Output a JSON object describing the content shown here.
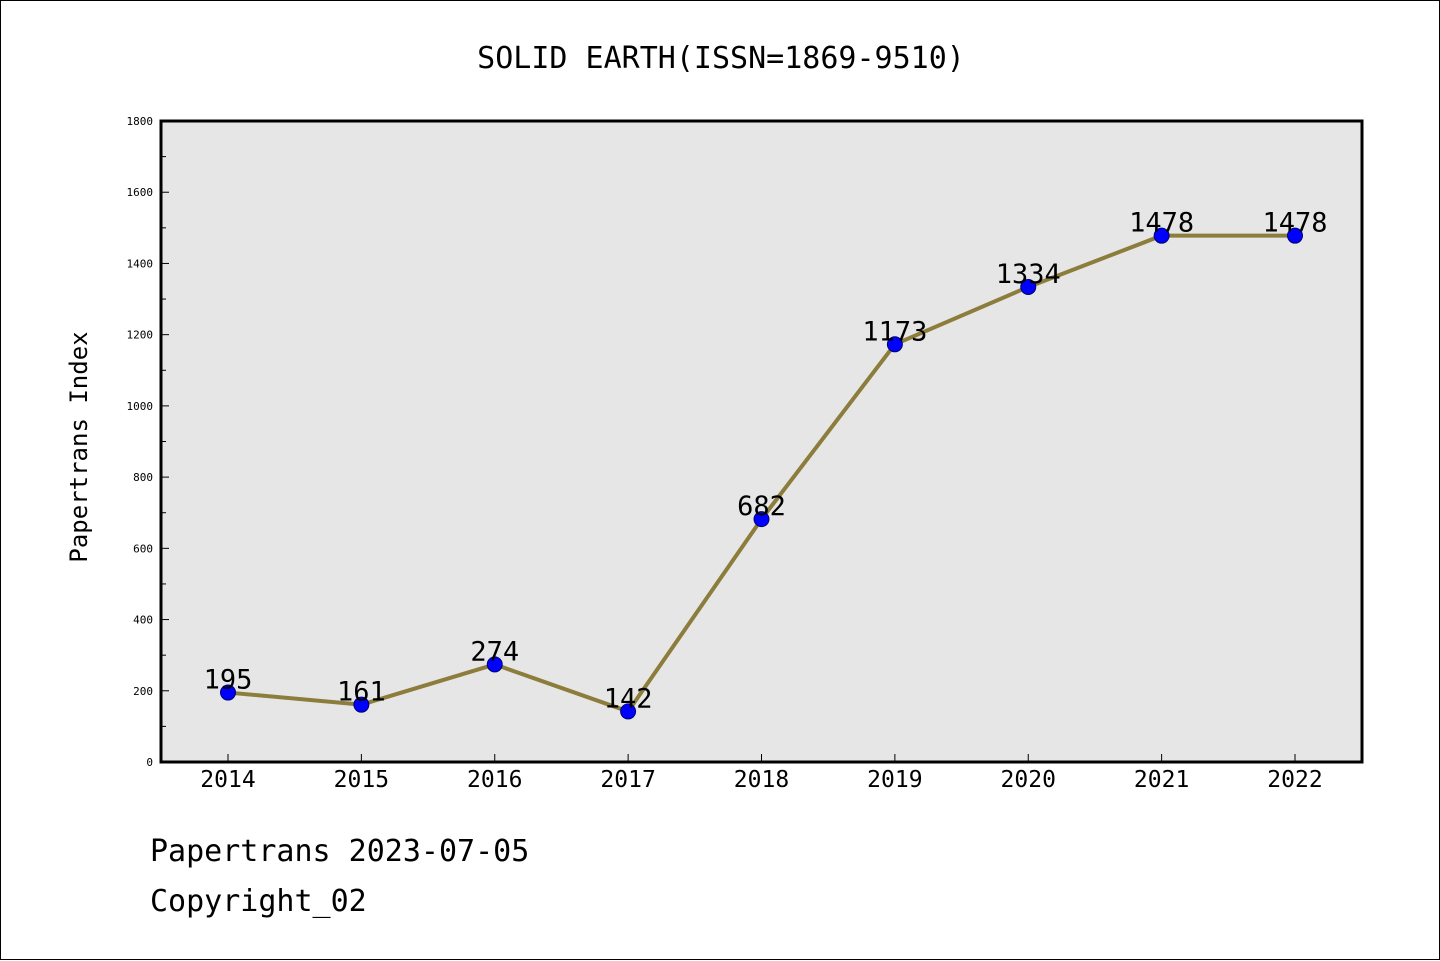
{
  "chart_data": {
    "type": "line",
    "title": "SOLID EARTH(ISSN=1869-9510)",
    "xlabel": "",
    "ylabel": "Papertrans Index",
    "categories": [
      "2014",
      "2015",
      "2016",
      "2017",
      "2018",
      "2019",
      "2020",
      "2021",
      "2022"
    ],
    "series": [
      {
        "values": [
          195,
          161,
          274,
          142,
          682,
          1173,
          1334,
          1478,
          1478
        ]
      }
    ],
    "data_labels": [
      "195",
      "161",
      "274",
      "142",
      "682",
      "1173",
      "1334",
      "1478",
      "1478"
    ],
    "ylim": [
      0,
      1800
    ],
    "y_major_ticks": [
      0,
      200,
      400,
      600,
      800,
      1000,
      1200,
      1400,
      1600,
      1800
    ],
    "y_tick_labels": [
      "0",
      "200",
      "400",
      "600",
      "800",
      "1000",
      "1200",
      "1400",
      "1600",
      "1800"
    ],
    "y_minor_step": 100,
    "grid": false,
    "legend": "none",
    "colors": {
      "line": "#8c7d3c",
      "marker": "#0000ff",
      "marker_edge": "#00006e",
      "plot_background": "#e6e6e6"
    }
  },
  "footer": {
    "source": "Papertrans 2023-07-05",
    "copyright": "Copyright_02"
  }
}
